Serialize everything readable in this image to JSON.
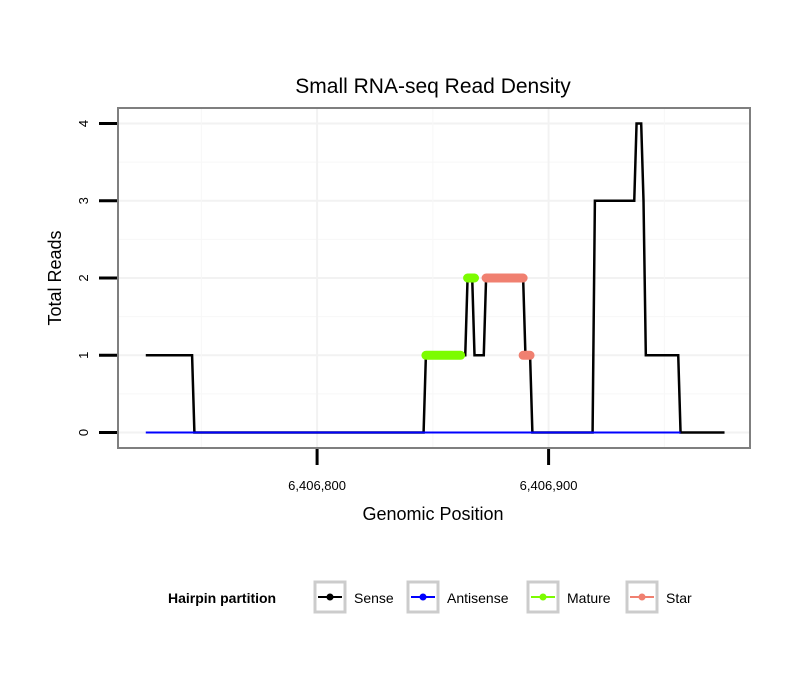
{
  "chart_data": {
    "type": "line",
    "title": "Small RNA-seq Read Density",
    "xlabel": "Genomic Position",
    "ylabel": "Total Reads",
    "xlim": [
      6406714,
      6406987
    ],
    "ylim": [
      -0.2,
      4.2
    ],
    "grid": true,
    "x_ticks": [
      {
        "value": 6406800,
        "label": "6,406,800"
      },
      {
        "value": 6406900,
        "label": "6,406,900"
      }
    ],
    "y_ticks": [
      {
        "value": 0,
        "label": "0"
      },
      {
        "value": 1,
        "label": "1"
      },
      {
        "value": 2,
        "label": "2"
      },
      {
        "value": 3,
        "label": "3"
      },
      {
        "value": 4,
        "label": "4"
      }
    ],
    "legend": {
      "title": "Hairpin partition",
      "position": "bottom",
      "entries": [
        {
          "label": "Sense",
          "color": "#000000"
        },
        {
          "label": "Antisense",
          "color": "#0000ff"
        },
        {
          "label": "Mature",
          "color": "#7cfc00"
        },
        {
          "label": "Star",
          "color": "#f08070"
        }
      ]
    },
    "series": [
      {
        "name": "Sense",
        "color": "#000000",
        "width": 2.5,
        "points": [
          [
            6406726,
            1
          ],
          [
            6406746,
            1
          ],
          [
            6406747,
            0
          ],
          [
            6406846,
            0
          ],
          [
            6406847,
            1
          ],
          [
            6406864,
            1
          ],
          [
            6406865,
            2
          ],
          [
            6406867,
            2
          ],
          [
            6406868,
            1
          ],
          [
            6406872,
            1
          ],
          [
            6406873,
            2
          ],
          [
            6406889,
            2
          ],
          [
            6406890,
            1
          ],
          [
            6406892,
            1
          ],
          [
            6406893,
            0
          ],
          [
            6406919,
            0
          ],
          [
            6406920,
            3
          ],
          [
            6406937,
            3
          ],
          [
            6406938,
            4
          ],
          [
            6406940,
            4
          ],
          [
            6406941,
            3
          ],
          [
            6406942,
            1
          ],
          [
            6406956,
            1
          ],
          [
            6406957,
            0
          ],
          [
            6406976,
            0
          ]
        ]
      },
      {
        "name": "Antisense",
        "color": "#0000ff",
        "width": 2,
        "points": [
          [
            6406726,
            0
          ],
          [
            6406957,
            0
          ]
        ]
      },
      {
        "name": "Mature",
        "color": "#7cfc00",
        "width": 9,
        "points": [
          [
            6406847,
            1
          ],
          [
            6406862,
            1
          ],
          null,
          [
            6406865,
            2
          ],
          [
            6406868,
            2
          ]
        ]
      },
      {
        "name": "Star",
        "color": "#f08070",
        "width": 9,
        "points": [
          [
            6406873,
            2
          ],
          [
            6406889,
            2
          ],
          null,
          [
            6406889,
            1
          ],
          [
            6406892,
            1
          ]
        ]
      }
    ]
  }
}
